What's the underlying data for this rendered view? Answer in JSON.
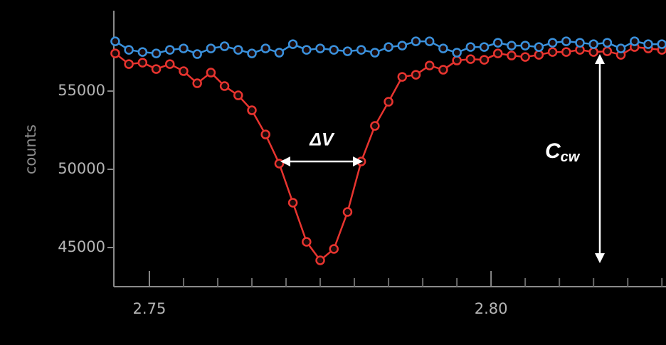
{
  "chart_data": {
    "type": "line",
    "y_label": "counts",
    "x": [
      2.745,
      2.747,
      2.749,
      2.751,
      2.753,
      2.755,
      2.757,
      2.759,
      2.761,
      2.763,
      2.765,
      2.767,
      2.769,
      2.771,
      2.773,
      2.775,
      2.777,
      2.779,
      2.781,
      2.783,
      2.785,
      2.787,
      2.789,
      2.791,
      2.793,
      2.795,
      2.797,
      2.799,
      2.801,
      2.803,
      2.805,
      2.807,
      2.809,
      2.811,
      2.813,
      2.815,
      2.817,
      2.819,
      2.821,
      2.823,
      2.825
    ],
    "series": [
      {
        "color": "#e8342f",
        "values": [
          57409,
          56727,
          56818,
          56409,
          56727,
          56273,
          55500,
          56182,
          55318,
          54727,
          53773,
          52227,
          50364,
          47864,
          45364,
          44182,
          44909,
          47273,
          50500,
          52773,
          54318,
          55909,
          56045,
          56636,
          56364,
          56955,
          57045,
          57000,
          57409,
          57273,
          57182,
          57318,
          57500,
          57500,
          57636,
          57500,
          57545,
          57318,
          57818,
          57727,
          57636
        ]
      },
      {
        "color": "#3a91dc",
        "values": [
          58180,
          57636,
          57500,
          57409,
          57636,
          57727,
          57364,
          57727,
          57864,
          57636,
          57409,
          57727,
          57455,
          58000,
          57636,
          57727,
          57636,
          57545,
          57636,
          57455,
          57818,
          57909,
          58182,
          58182,
          57727,
          57455,
          57818,
          57818,
          58091,
          57909,
          57909,
          57818,
          58091,
          58182,
          58091,
          58000,
          58091,
          57727,
          58182,
          58000,
          58000
        ]
      }
    ],
    "xlim": [
      2.7448,
      2.8256
    ],
    "xticks": [
      {
        "value": 2.75,
        "label": "2.75"
      },
      {
        "value": 2.8,
        "label": "2.80"
      }
    ],
    "xminorticks": [
      2.755,
      2.76,
      2.765,
      2.77,
      2.775,
      2.78,
      2.785,
      2.79,
      2.795,
      2.805,
      2.81,
      2.815,
      2.82,
      2.825
    ],
    "ylim": [
      42500,
      60140
    ],
    "yticks": [
      45000,
      50000,
      55000
    ],
    "annotations": [
      {
        "text": "ΔV"
      },
      {
        "text": "C",
        "subscript": "cw"
      }
    ]
  }
}
